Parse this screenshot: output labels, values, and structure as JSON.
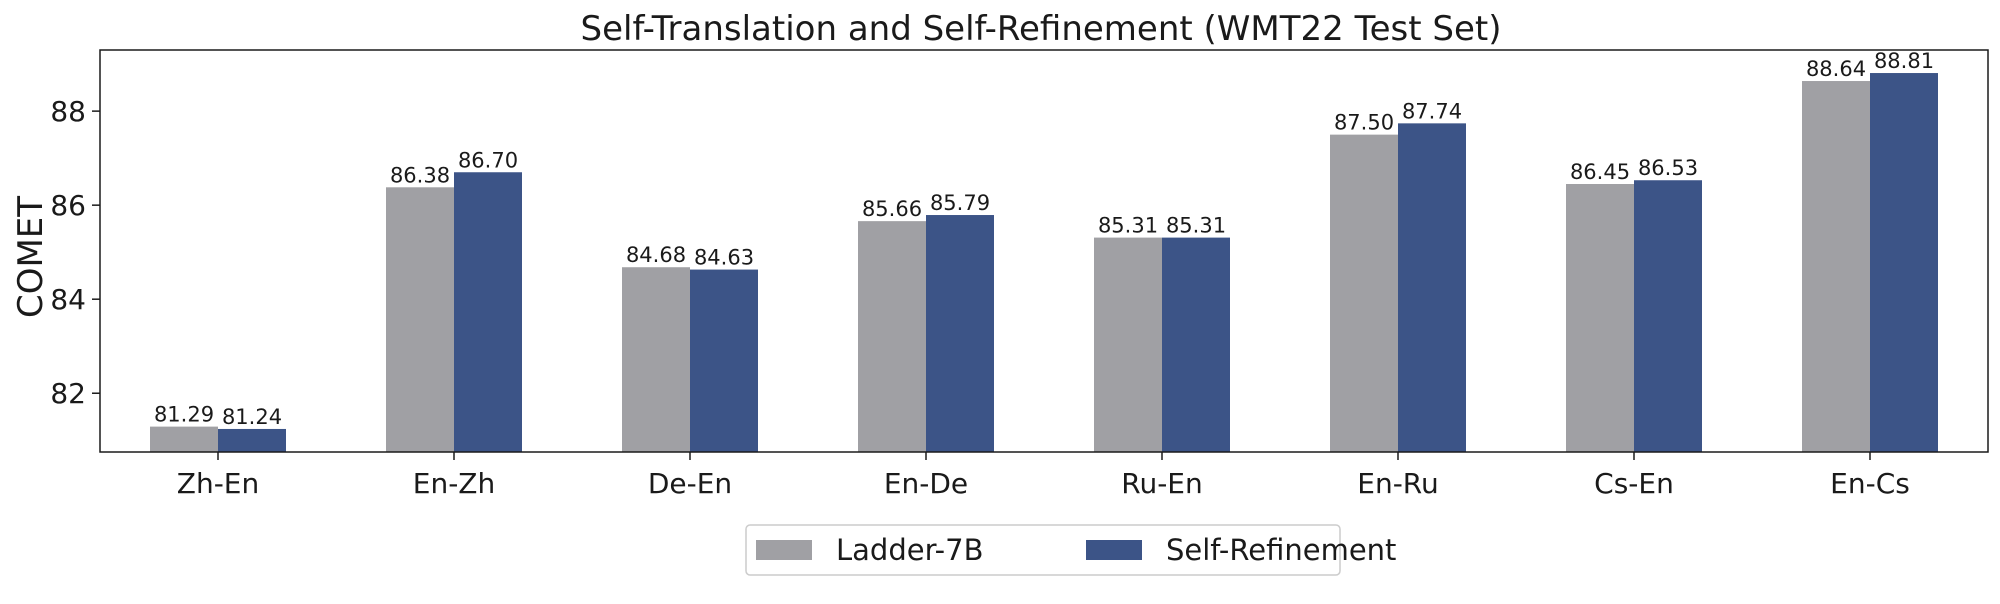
{
  "chart_data": {
    "type": "bar",
    "title": "Self-Translation and Self-Refinement (WMT22 Test Set)",
    "xlabel": "",
    "ylabel": "COMET",
    "categories": [
      "Zh-En",
      "En-Zh",
      "De-En",
      "En-De",
      "Ru-En",
      "En-Ru",
      "Cs-En",
      "En-Cs"
    ],
    "series": [
      {
        "name": "Ladder-7B",
        "color": "#a0a0a4",
        "values": [
          81.29,
          86.38,
          84.68,
          85.66,
          85.31,
          87.5,
          86.45,
          88.64
        ],
        "labels": [
          "81.29",
          "86.38",
          "84.68",
          "85.66",
          "85.31",
          "87.50",
          "86.45",
          "88.64"
        ]
      },
      {
        "name": "Self-Refinement",
        "color": "#3c5487",
        "values": [
          81.24,
          86.7,
          84.63,
          85.79,
          85.31,
          87.74,
          86.53,
          88.81
        ],
        "labels": [
          "81.24",
          "86.70",
          "84.63",
          "85.79",
          "85.31",
          "87.74",
          "86.53",
          "88.81"
        ]
      }
    ],
    "ylim": [
      80.75,
      89.3
    ],
    "yticks": [
      82,
      84,
      86,
      88
    ],
    "grid": false,
    "legend_position": "bottom-center"
  }
}
